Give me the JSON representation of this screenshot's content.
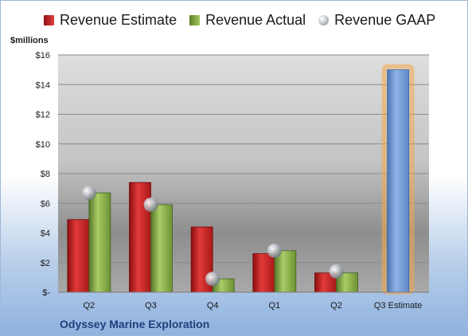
{
  "chart_data": {
    "type": "bar",
    "title": "",
    "ylabel": "$millions",
    "ylim": [
      0,
      16
    ],
    "y_ticks": [
      "$-",
      "$2",
      "$4",
      "$6",
      "$8",
      "$10",
      "$12",
      "$14",
      "$16"
    ],
    "categories": [
      "Q2",
      "Q3",
      "Q4",
      "Q1",
      "Q2",
      "Q3 Estimate"
    ],
    "series": [
      {
        "name": "Revenue Estimate",
        "color": "#d62b2b",
        "values": [
          4.9,
          7.4,
          4.4,
          2.6,
          1.3,
          null
        ]
      },
      {
        "name": "Revenue Actual",
        "color": "#8fb64a",
        "values": [
          6.7,
          5.9,
          0.9,
          2.8,
          1.3,
          null
        ]
      },
      {
        "name": "Revenue GAAP",
        "color": "#b8bcc4",
        "marker": "sphere",
        "values": [
          6.7,
          5.9,
          0.9,
          2.8,
          1.4,
          null
        ]
      },
      {
        "name": "Q3 Estimate",
        "color": "#6f9ad6",
        "highlight_color": "#f5a74a",
        "values": [
          null,
          null,
          null,
          null,
          null,
          15.0
        ]
      }
    ],
    "legend": [
      "Revenue Estimate",
      "Revenue Actual",
      "Revenue GAAP"
    ],
    "legend_position": "top",
    "grid": true,
    "plot_background": "gradient gray"
  },
  "footer": {
    "company": "Odyssey Marine Exploration"
  }
}
